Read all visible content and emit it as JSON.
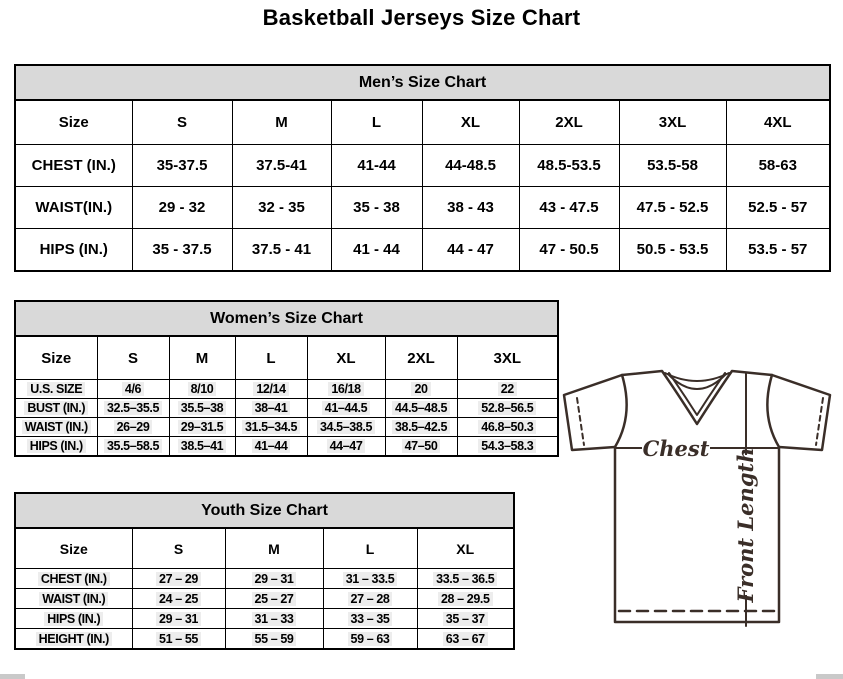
{
  "title": "Basketball Jerseys Size Chart",
  "tables": {
    "men": {
      "title": "Men’s Size Chart",
      "columns": [
        "Size",
        "S",
        "M",
        "L",
        "XL",
        "2XL",
        "3XL",
        "4XL"
      ],
      "rows": [
        {
          "label": "CHEST (IN.)",
          "values": [
            "35-37.5",
            "37.5-41",
            "41-44",
            "44-48.5",
            "48.5-53.5",
            "53.5-58",
            "58-63"
          ]
        },
        {
          "label": "WAIST(IN.)",
          "values": [
            "29 - 32",
            "32 - 35",
            "35 - 38",
            "38 - 43",
            "43 - 47.5",
            "47.5 - 52.5",
            "52.5 - 57"
          ]
        },
        {
          "label": "HIPS (IN.)",
          "values": [
            "35 - 37.5",
            "37.5 - 41",
            "41 - 44",
            "44 - 47",
            "47 - 50.5",
            "50.5 - 53.5",
            "53.5 - 57"
          ]
        }
      ]
    },
    "women": {
      "title": "Women’s Size Chart",
      "columns": [
        "Size",
        "S",
        "M",
        "L",
        "XL",
        "2XL",
        "3XL"
      ],
      "rows": [
        {
          "label": "U.S. SIZE",
          "values": [
            "4/6",
            "8/10",
            "12/14",
            "16/18",
            "20",
            "22"
          ]
        },
        {
          "label": "BUST (IN.)",
          "values": [
            "32.5–35.5",
            "35.5–38",
            "38–41",
            "41–44.5",
            "44.5–48.5",
            "52.8–56.5"
          ]
        },
        {
          "label": "WAIST (IN.)",
          "values": [
            "26–29",
            "29–31.5",
            "31.5–34.5",
            "34.5–38.5",
            "38.5–42.5",
            "46.8–50.3"
          ]
        },
        {
          "label": "HIPS (IN.)",
          "values": [
            "35.5–58.5",
            "38.5–41",
            "41–44",
            "44–47",
            "47–50",
            "54.3–58.3"
          ]
        }
      ]
    },
    "youth": {
      "title": "Youth Size Chart",
      "columns": [
        "Size",
        "S",
        "M",
        "L",
        "XL"
      ],
      "rows": [
        {
          "label": "CHEST (IN.)",
          "values": [
            "27 – 29",
            "29 – 31",
            "31 – 33.5",
            "33.5 – 36.5"
          ]
        },
        {
          "label": "WAIST (IN.)",
          "values": [
            "24 – 25",
            "25 – 27",
            "27 – 28",
            "28 – 29.5"
          ]
        },
        {
          "label": "HIPS (IN.)",
          "values": [
            "29 – 31",
            "31 – 33",
            "33 – 35",
            "35 – 37"
          ]
        },
        {
          "label": "HEIGHT (IN.)",
          "values": [
            "51 – 55",
            "55 – 59",
            "59 – 63",
            "63 – 67"
          ]
        }
      ]
    }
  },
  "diagram": {
    "chest_label": "Chest",
    "front_length_label": "Front Length"
  },
  "colors": {
    "table_header_bg": "#d9d9d9",
    "table_border": "#000000",
    "jersey_outline": "#3a2e28",
    "value_highlight": "#ededed"
  }
}
